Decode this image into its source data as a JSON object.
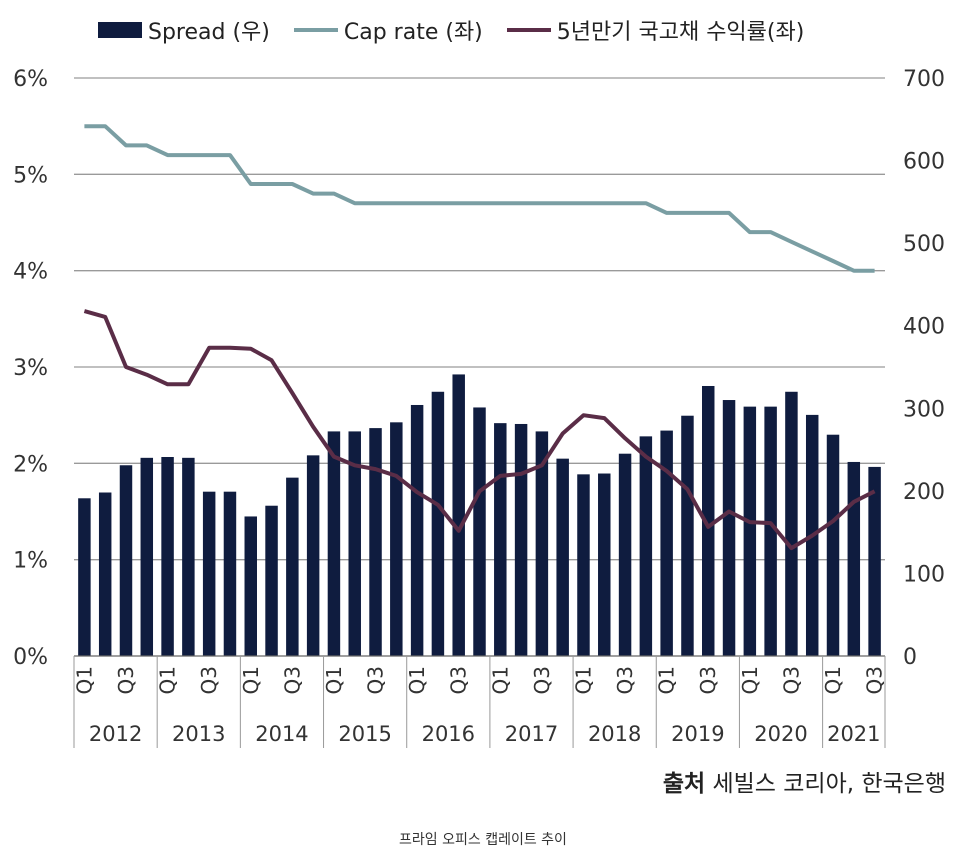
{
  "chart_data": {
    "type": "bar",
    "legend": {
      "spread_label": "Spread (우)",
      "cap_label": "Cap rate (좌)",
      "treasury_label": "5년만기 국고채 수익률(좌)",
      "placement": "top"
    },
    "left_axis": {
      "ylim": [
        0,
        6
      ],
      "ticks": [
        "0%",
        "1%",
        "2%",
        "3%",
        "4%",
        "5%",
        "6%"
      ]
    },
    "right_axis": {
      "ylim": [
        0,
        700
      ],
      "ticks": [
        "0",
        "100",
        "200",
        "300",
        "400",
        "500",
        "600",
        "700"
      ]
    },
    "quarter_labels": [
      "Q1",
      "Q3"
    ],
    "years": [
      "2012",
      "2013",
      "2014",
      "2015",
      "2016",
      "2017",
      "2018",
      "2019",
      "2020",
      "2021"
    ],
    "x": [
      "2012Q1",
      "2012Q2",
      "2012Q3",
      "2012Q4",
      "2013Q1",
      "2013Q2",
      "2013Q3",
      "2013Q4",
      "2014Q1",
      "2014Q2",
      "2014Q3",
      "2014Q4",
      "2015Q1",
      "2015Q2",
      "2015Q3",
      "2015Q4",
      "2016Q1",
      "2016Q2",
      "2016Q3",
      "2016Q4",
      "2017Q1",
      "2017Q2",
      "2017Q3",
      "2017Q4",
      "2018Q1",
      "2018Q2",
      "2018Q3",
      "2018Q4",
      "2019Q1",
      "2019Q2",
      "2019Q3",
      "2019Q4",
      "2020Q1",
      "2020Q2",
      "2020Q3",
      "2020Q4",
      "2021Q1",
      "2021Q2",
      "2021Q3"
    ],
    "series": [
      {
        "name": "Spread (우)",
        "type": "bar",
        "axis": "right",
        "color": "#0f1c3f",
        "values": [
          191,
          198,
          231,
          240,
          241,
          240,
          199,
          199,
          169,
          182,
          216,
          243,
          272,
          272,
          276,
          283,
          304,
          320,
          341,
          301,
          282,
          281,
          272,
          239,
          220,
          221,
          245,
          266,
          273,
          291,
          327,
          310,
          302,
          302,
          320,
          292,
          268,
          235,
          229
        ]
      },
      {
        "name": "Cap rate (좌)",
        "type": "line",
        "axis": "left",
        "color": "#7a9ea3",
        "values": [
          5.5,
          5.5,
          5.3,
          5.3,
          5.2,
          5.2,
          5.2,
          5.2,
          4.9,
          4.9,
          4.9,
          4.8,
          4.8,
          4.7,
          4.7,
          4.7,
          4.7,
          4.7,
          4.7,
          4.7,
          4.7,
          4.7,
          4.7,
          4.7,
          4.7,
          4.7,
          4.7,
          4.7,
          4.6,
          4.6,
          4.6,
          4.6,
          4.4,
          4.4,
          4.3,
          4.2,
          4.1,
          4.0,
          4.0
        ]
      },
      {
        "name": "5년만기 국고채 수익률(좌)",
        "type": "line",
        "axis": "left",
        "color": "#5a2d47",
        "values": [
          3.58,
          3.52,
          3.0,
          2.92,
          2.82,
          2.82,
          3.2,
          3.2,
          3.19,
          3.07,
          2.73,
          2.38,
          2.07,
          1.98,
          1.94,
          1.87,
          1.7,
          1.57,
          1.3,
          1.71,
          1.87,
          1.89,
          1.98,
          2.31,
          2.5,
          2.47,
          2.26,
          2.07,
          1.92,
          1.73,
          1.34,
          1.5,
          1.39,
          1.38,
          1.12,
          1.25,
          1.4,
          1.6,
          1.71
        ]
      }
    ]
  },
  "source": {
    "bold": "출처",
    "text": " 세빌스 코리아, 한국은행"
  },
  "caption": "프라임 오피스 캡레이트 추이"
}
